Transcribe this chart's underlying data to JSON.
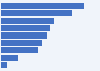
{
  "values": [
    10.0,
    8.6,
    6.4,
    5.9,
    5.5,
    4.9,
    4.5,
    2.1,
    0.7
  ],
  "bar_color": "#4472c4",
  "background_color": "#f0f4fa",
  "bar_height": 0.82,
  "xlim_max": 11.0
}
